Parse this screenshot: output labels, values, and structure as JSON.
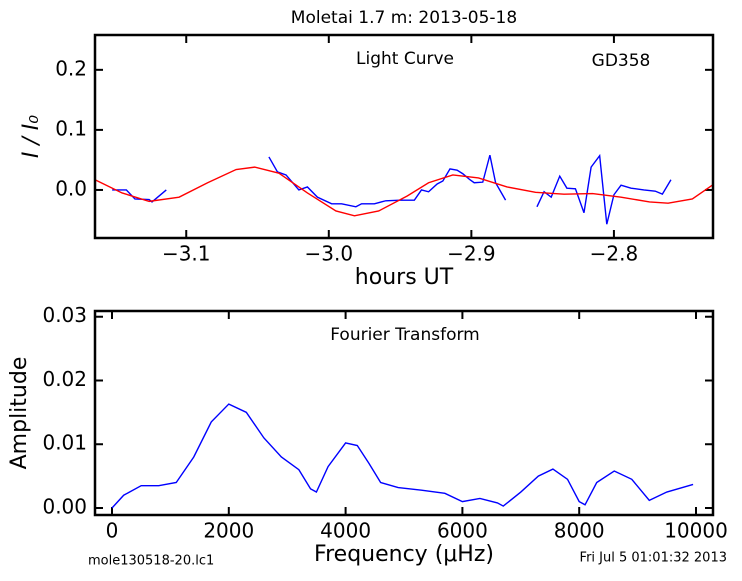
{
  "chart_data": [
    {
      "type": "line",
      "title": "Moletai 1.7 m:  2013-05-18",
      "x_label": "hours UT",
      "y_label": "I / I₀",
      "annotations": [
        "Light Curve",
        "GD358"
      ],
      "xlim": [
        -3.164,
        -2.7305
      ],
      "ylim": [
        -0.08,
        0.258
      ],
      "xticks": [
        {
          "value": -3.1,
          "label": "−3.1"
        },
        {
          "value": -3.0,
          "label": "−3.0"
        },
        {
          "value": -2.9,
          "label": "−2.9"
        },
        {
          "value": -2.8,
          "label": "−2.8"
        }
      ],
      "yticks": [
        {
          "value": 0.0,
          "label": "0.0"
        },
        {
          "value": 0.1,
          "label": "0.1"
        },
        {
          "value": 0.2,
          "label": "0.2"
        }
      ],
      "series": [
        {
          "color": "#0000ff",
          "x": [
            -3.152,
            -3.142,
            -3.136,
            -3.126,
            -3.124,
            -3.114,
            null,
            -3.042,
            -3.036,
            -3.03,
            -3.021,
            -3.015,
            -3.008,
            -2.998,
            -2.991,
            -2.981,
            -2.977,
            -2.968,
            -2.96,
            -2.95,
            -2.94,
            -2.935,
            -2.93,
            -2.924,
            -2.92,
            -2.915,
            -2.91,
            -2.906,
            -2.901,
            -2.898,
            -2.892,
            -2.887,
            -2.883,
            -2.876,
            null,
            -2.854,
            -2.849,
            -2.844,
            -2.838,
            -2.833,
            -2.827,
            -2.821,
            -2.816,
            -2.81,
            -2.805,
            -2.8,
            -2.795,
            -2.788,
            -2.779,
            -2.771,
            -2.766,
            -2.76
          ],
          "values": [
            0.0,
            0.0,
            -0.015,
            -0.016,
            -0.02,
            0.0,
            null,
            0.055,
            0.03,
            0.025,
            0.0,
            0.005,
            -0.012,
            -0.023,
            -0.023,
            -0.028,
            -0.023,
            -0.023,
            -0.018,
            -0.017,
            -0.017,
            0.0,
            -0.003,
            0.01,
            0.015,
            0.035,
            0.033,
            0.027,
            0.017,
            0.012,
            0.013,
            0.058,
            0.012,
            -0.017,
            null,
            -0.028,
            -0.003,
            -0.012,
            0.023,
            0.003,
            0.002,
            -0.038,
            0.038,
            0.057,
            -0.057,
            -0.008,
            0.008,
            0.003,
            0.0,
            -0.002,
            -0.007,
            0.017
          ]
        },
        {
          "color": "#ff0000",
          "x": [
            -3.164,
            -3.145,
            -3.126,
            -3.105,
            -3.085,
            -3.065,
            -3.052,
            -3.035,
            -3.015,
            -2.995,
            -2.982,
            -2.965,
            -2.945,
            -2.93,
            -2.913,
            -2.895,
            -2.875,
            -2.855,
            -2.835,
            -2.815,
            -2.795,
            -2.775,
            -2.762,
            -2.745,
            -2.731
          ],
          "values": [
            0.017,
            -0.005,
            -0.019,
            -0.012,
            0.012,
            0.034,
            0.038,
            0.028,
            -0.005,
            -0.035,
            -0.043,
            -0.035,
            -0.01,
            0.012,
            0.025,
            0.02,
            0.005,
            -0.004,
            -0.007,
            -0.006,
            -0.012,
            -0.02,
            -0.022,
            -0.015,
            0.008
          ]
        }
      ]
    },
    {
      "type": "line",
      "x_label": "Frequency (μHz)",
      "y_label": "Amplitude",
      "annotations": [
        "Fourier Transform"
      ],
      "xlim": [
        -291,
        10291
      ],
      "ylim": [
        -0.0011,
        0.0309
      ],
      "xticks": [
        0,
        2000,
        4000,
        6000,
        8000,
        10000
      ],
      "yticks": [
        {
          "value": 0.0,
          "label": "0.00"
        },
        {
          "value": 0.01,
          "label": "0.01"
        },
        {
          "value": 0.02,
          "label": "0.02"
        },
        {
          "value": 0.03,
          "label": "0.03"
        }
      ],
      "series": [
        {
          "color": "#0000ff",
          "x": [
            0,
            200,
            500,
            800,
            1100,
            1400,
            1700,
            2000,
            2300,
            2600,
            2900,
            3200,
            3400,
            3500,
            3700,
            4000,
            4200,
            4400,
            4600,
            4900,
            5300,
            5700,
            6000,
            6300,
            6600,
            6700,
            7000,
            7300,
            7550,
            7800,
            8000,
            8100,
            8300,
            8600,
            8900,
            9200,
            9500,
            9950
          ],
          "values": [
            0.0,
            0.002,
            0.0035,
            0.0035,
            0.004,
            0.008,
            0.0135,
            0.0163,
            0.015,
            0.011,
            0.008,
            0.006,
            0.003,
            0.0025,
            0.0065,
            0.0102,
            0.0098,
            0.007,
            0.004,
            0.0032,
            0.0028,
            0.0023,
            0.001,
            0.0015,
            0.0008,
            0.0003,
            0.0025,
            0.005,
            0.0061,
            0.0045,
            0.001,
            0.0005,
            0.004,
            0.0058,
            0.0045,
            0.0012,
            0.0025,
            0.0037
          ]
        }
      ]
    }
  ],
  "footer": {
    "left": "mole130518-20.lc1",
    "right": "Fri Jul  5 01:01:32 2013"
  }
}
